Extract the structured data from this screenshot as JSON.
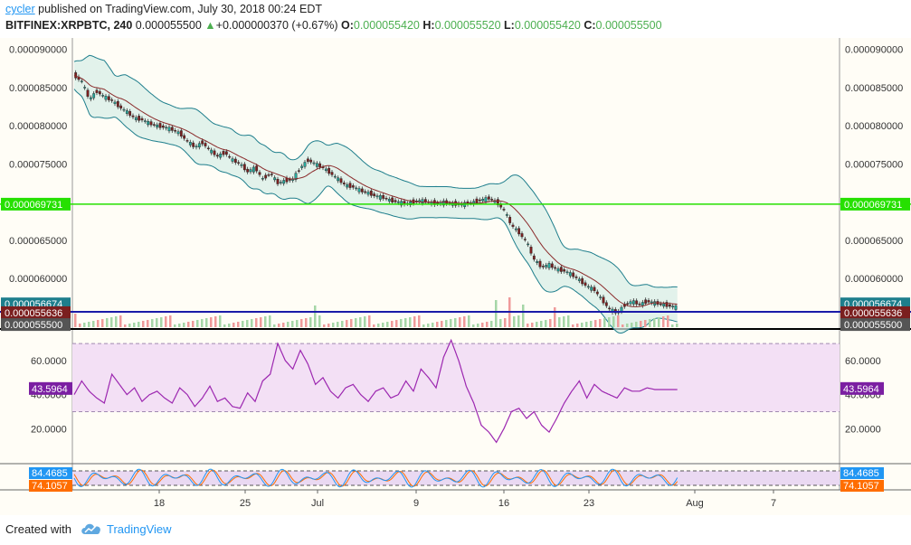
{
  "header": {
    "author": "cycler",
    "published_text": " published on TradingView.com, July 30, 2018 00:24 EDT",
    "symbol": "BITFINEX:XRPBTC, 240",
    "last": "0.000055500",
    "change": "+0.000000370 (+0.67%)",
    "o_label": "O:",
    "o_value": "0.000055420",
    "h_label": "H:",
    "h_value": "0.000055520",
    "l_label": "L:",
    "l_value": "0.000055420",
    "c_label": "C:",
    "c_value": "0.000055500"
  },
  "colors": {
    "up": "#4caf50",
    "down": "#880e4f",
    "candle_up": "#26a69a",
    "candle_down": "#7b1f1f",
    "bb_band": "#1e7e8c",
    "bb_fill": "#d5ece7",
    "ma": "#8b2b2b",
    "support_green": "#26e000",
    "support_blue": "#1a1aa8",
    "rsi": "#9c27b0",
    "rsi_fill": "#f3e0f5",
    "stoch_k": "#2196f3",
    "stoch_d": "#ff6d00",
    "panel_bg": "#fffdf6"
  },
  "price_axis": {
    "ticks": [
      "0.000090000",
      "0.000085000",
      "0.000080000",
      "0.000075000",
      "0.000065000",
      "0.000060000"
    ],
    "badges": [
      {
        "text": "0.000069731",
        "color": "#26e000",
        "price": 6.9731e-05
      },
      {
        "text": "0.000056674",
        "color": "#1e7e8c",
        "price": 5.6674e-05
      },
      {
        "text": "0.000055636",
        "color": "#7b1f1f",
        "price": 5.5636e-05
      },
      {
        "text": "0.000055500",
        "color": "#555555",
        "price": 5.55e-05
      }
    ]
  },
  "rsi_axis": {
    "ticks": [
      "60.0000",
      "40.0000",
      "20.0000"
    ],
    "badge": "43.5964"
  },
  "stoch_axis": {
    "badge_k": "84.4685",
    "badge_d": "74.1057"
  },
  "time_axis": [
    "18",
    "25",
    "Jul",
    "9",
    "16",
    "23",
    "Aug",
    "7"
  ],
  "footer": {
    "created_with": "Created with",
    "brand": "TradingView"
  },
  "chart_data": {
    "type": "candlestick",
    "symbol": "BITFINEX:XRPBTC",
    "interval": "240",
    "ylim": [
      5.35e-05,
      9.15e-05
    ],
    "horizontal_lines": [
      6.9731e-05,
      5.5636e-05
    ],
    "price_path": [
      [
        0,
        8.66e-05
      ],
      [
        5,
        8.58e-05
      ],
      [
        10,
        8.35e-05
      ],
      [
        15,
        8.45e-05
      ],
      [
        20,
        8.38e-05
      ],
      [
        25,
        8.33e-05
      ],
      [
        30,
        8.25e-05
      ],
      [
        35,
        8.18e-05
      ],
      [
        40,
        8.1e-05
      ],
      [
        45,
        8.08e-05
      ],
      [
        50,
        8.03e-05
      ],
      [
        55,
        8e-05
      ],
      [
        60,
        7.98e-05
      ],
      [
        65,
        7.95e-05
      ],
      [
        70,
        7.9e-05
      ],
      [
        75,
        7.8e-05
      ],
      [
        80,
        7.72e-05
      ],
      [
        85,
        7.78e-05
      ],
      [
        90,
        7.68e-05
      ],
      [
        95,
        7.6e-05
      ],
      [
        100,
        7.65e-05
      ],
      [
        105,
        7.55e-05
      ],
      [
        110,
        7.5e-05
      ],
      [
        115,
        7.4e-05
      ],
      [
        120,
        7.45e-05
      ],
      [
        125,
        7.3e-05
      ],
      [
        130,
        7.38e-05
      ],
      [
        135,
        7.25e-05
      ],
      [
        140,
        7.28e-05
      ],
      [
        145,
        7.3e-05
      ],
      [
        150,
        7.45e-05
      ],
      [
        155,
        7.55e-05
      ],
      [
        160,
        7.5e-05
      ],
      [
        165,
        7.45e-05
      ],
      [
        170,
        7.38e-05
      ],
      [
        175,
        7.3e-05
      ],
      [
        180,
        7.22e-05
      ],
      [
        185,
        7.2e-05
      ],
      [
        190,
        7.15e-05
      ],
      [
        195,
        7.12e-05
      ],
      [
        200,
        7.08e-05
      ],
      [
        205,
        7.06e-05
      ],
      [
        210,
        7.02e-05
      ],
      [
        215,
        7e-05
      ],
      [
        220,
        6.98e-05
      ],
      [
        225,
        7e-05
      ],
      [
        230,
        7.02e-05
      ],
      [
        235,
        7e-05
      ],
      [
        240,
        6.98e-05
      ],
      [
        245,
        7e-05
      ],
      [
        250,
        6.98e-05
      ],
      [
        255,
        6.97e-05
      ],
      [
        260,
        6.98e-05
      ],
      [
        265,
        7e-05
      ],
      [
        270,
        7.03e-05
      ],
      [
        275,
        7.05e-05
      ],
      [
        280,
        7e-05
      ],
      [
        285,
        6.9e-05
      ],
      [
        290,
        6.7e-05
      ],
      [
        295,
        6.6e-05
      ],
      [
        300,
        6.48e-05
      ],
      [
        305,
        6.25e-05
      ],
      [
        310,
        6.15e-05
      ],
      [
        315,
        6.18e-05
      ],
      [
        320,
        6.12e-05
      ],
      [
        325,
        6.1e-05
      ],
      [
        330,
        6.05e-05
      ],
      [
        335,
        5.98e-05
      ],
      [
        340,
        5.9e-05
      ],
      [
        345,
        5.85e-05
      ],
      [
        350,
        5.72e-05
      ],
      [
        355,
        5.6e-05
      ],
      [
        360,
        5.55e-05
      ],
      [
        365,
        5.65e-05
      ],
      [
        370,
        5.7e-05
      ],
      [
        375,
        5.66e-05
      ],
      [
        380,
        5.7e-05
      ],
      [
        385,
        5.68e-05
      ],
      [
        390,
        5.66e-05
      ],
      [
        395,
        5.64e-05
      ],
      [
        400,
        5.62e-05
      ],
      [
        405,
        5.6e-05
      ],
      [
        410,
        5.58e-05
      ],
      [
        415,
        5.56e-05
      ],
      [
        420,
        5.55e-05
      ]
    ],
    "rsi_range": [
      0,
      78
    ],
    "rsi_bands": [
      70,
      30
    ],
    "rsi_last": 43.5964,
    "rsi_path": [
      [
        0,
        40
      ],
      [
        5,
        48
      ],
      [
        10,
        42
      ],
      [
        15,
        38
      ],
      [
        20,
        35
      ],
      [
        25,
        52
      ],
      [
        30,
        46
      ],
      [
        35,
        40
      ],
      [
        40,
        44
      ],
      [
        45,
        36
      ],
      [
        50,
        40
      ],
      [
        55,
        42
      ],
      [
        60,
        38
      ],
      [
        65,
        35
      ],
      [
        70,
        44
      ],
      [
        75,
        40
      ],
      [
        80,
        33
      ],
      [
        85,
        38
      ],
      [
        90,
        45
      ],
      [
        95,
        36
      ],
      [
        100,
        38
      ],
      [
        105,
        33
      ],
      [
        110,
        32
      ],
      [
        115,
        41
      ],
      [
        120,
        36
      ],
      [
        125,
        48
      ],
      [
        130,
        52
      ],
      [
        135,
        70
      ],
      [
        140,
        60
      ],
      [
        145,
        55
      ],
      [
        150,
        66
      ],
      [
        155,
        58
      ],
      [
        160,
        46
      ],
      [
        165,
        50
      ],
      [
        170,
        42
      ],
      [
        175,
        38
      ],
      [
        180,
        44
      ],
      [
        185,
        46
      ],
      [
        190,
        40
      ],
      [
        195,
        36
      ],
      [
        200,
        42
      ],
      [
        205,
        44
      ],
      [
        210,
        38
      ],
      [
        215,
        40
      ],
      [
        220,
        48
      ],
      [
        225,
        42
      ],
      [
        230,
        55
      ],
      [
        235,
        50
      ],
      [
        240,
        44
      ],
      [
        245,
        62
      ],
      [
        250,
        72
      ],
      [
        255,
        60
      ],
      [
        260,
        45
      ],
      [
        265,
        35
      ],
      [
        270,
        22
      ],
      [
        275,
        18
      ],
      [
        280,
        12
      ],
      [
        285,
        20
      ],
      [
        290,
        30
      ],
      [
        295,
        32
      ],
      [
        300,
        26
      ],
      [
        305,
        30
      ],
      [
        310,
        22
      ],
      [
        315,
        18
      ],
      [
        320,
        26
      ],
      [
        325,
        35
      ],
      [
        330,
        42
      ],
      [
        335,
        48
      ],
      [
        340,
        38
      ],
      [
        345,
        46
      ],
      [
        350,
        42
      ],
      [
        355,
        40
      ],
      [
        360,
        38
      ],
      [
        365,
        44
      ],
      [
        370,
        42
      ],
      [
        375,
        42
      ],
      [
        380,
        44
      ],
      [
        385,
        43
      ]
    ],
    "stoch_k_last": 84.4685,
    "stoch_d_last": 74.1057
  }
}
